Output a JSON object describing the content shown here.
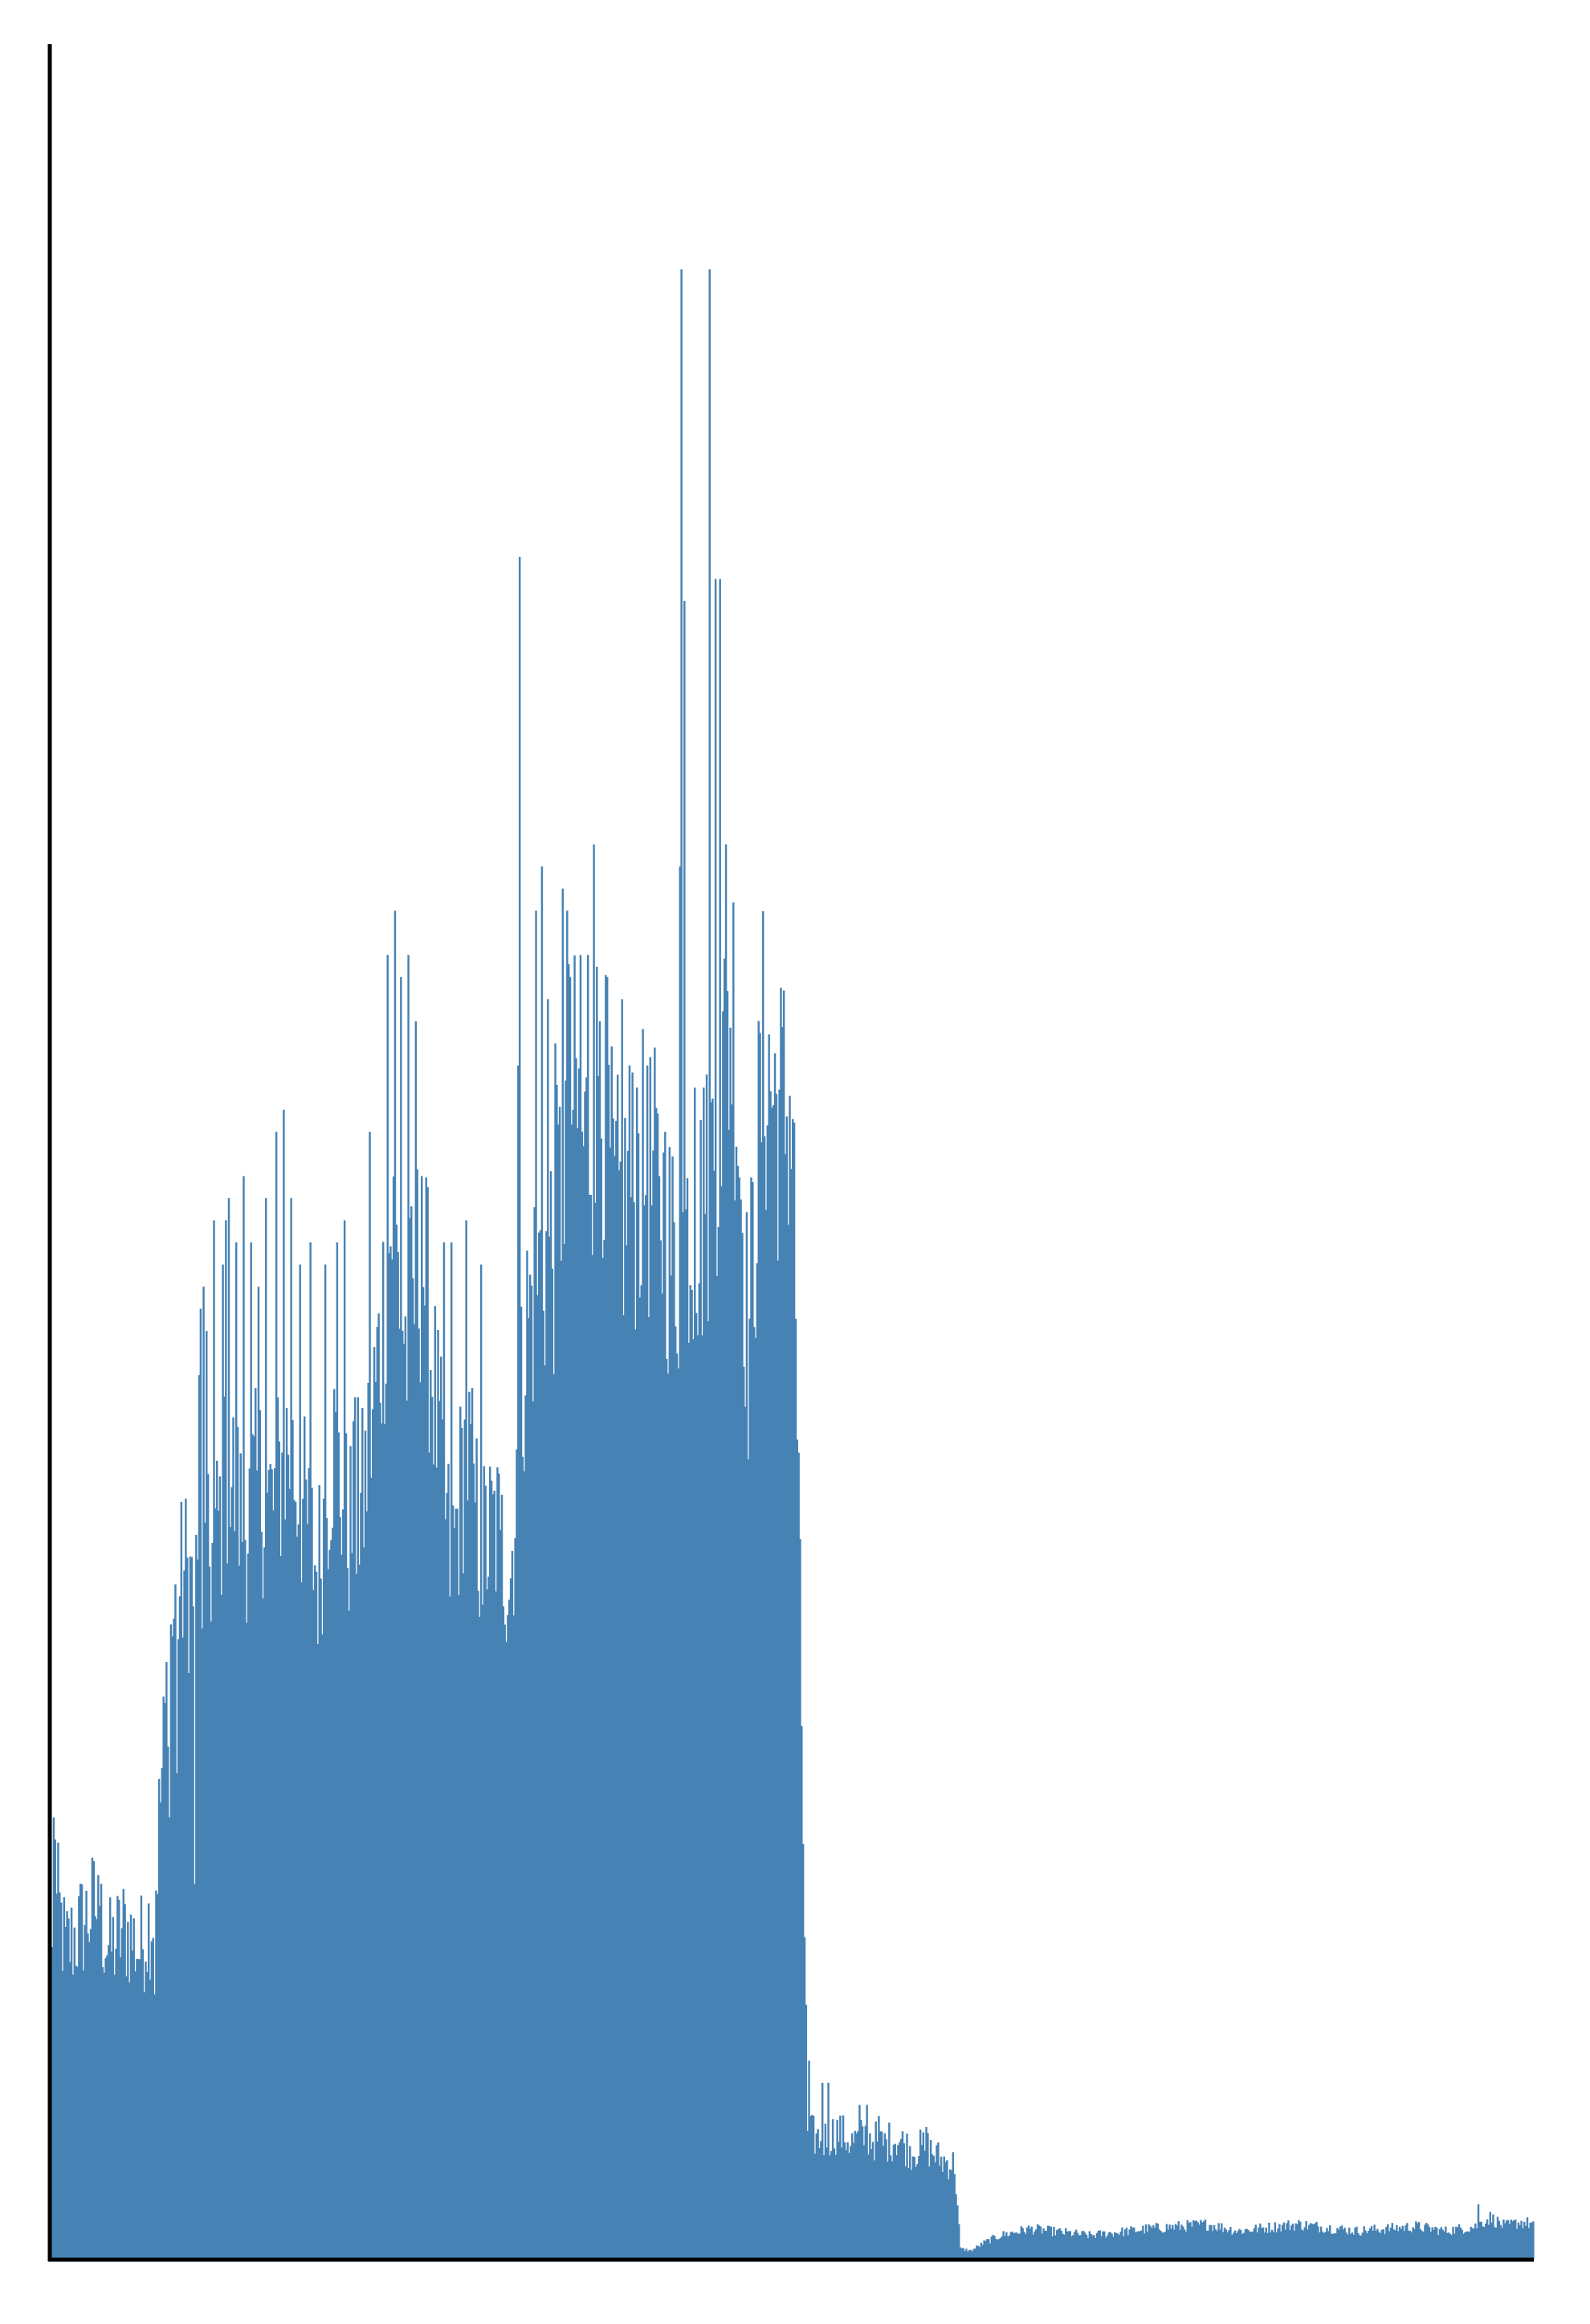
{
  "chart_data": {
    "type": "bar",
    "title": "",
    "xlabel": "",
    "ylabel": "",
    "x_ticks_visible": false,
    "y_ticks_visible": false,
    "grid": false,
    "legend": "none",
    "color": "#4682b4",
    "axis_color": "#000000",
    "ylim": [
      0,
      100
    ],
    "n_bars": 1000,
    "series": [
      {
        "profile": [
          [
            0,
            15
          ],
          [
            5,
            16
          ],
          [
            10,
            14
          ],
          [
            20,
            15
          ],
          [
            30,
            16
          ],
          [
            40,
            14
          ],
          [
            50,
            15
          ],
          [
            60,
            14
          ],
          [
            70,
            16
          ],
          [
            80,
            28
          ],
          [
            90,
            31
          ],
          [
            100,
            30
          ],
          [
            110,
            32
          ],
          [
            120,
            36
          ],
          [
            130,
            33
          ],
          [
            140,
            35
          ],
          [
            150,
            34
          ],
          [
            160,
            37
          ],
          [
            170,
            34
          ],
          [
            180,
            31
          ],
          [
            190,
            37
          ],
          [
            200,
            33
          ],
          [
            210,
            34
          ],
          [
            220,
            40
          ],
          [
            230,
            47
          ],
          [
            240,
            41
          ],
          [
            250,
            46
          ],
          [
            260,
            38
          ],
          [
            270,
            31
          ],
          [
            280,
            37
          ],
          [
            290,
            32
          ],
          [
            300,
            33
          ],
          [
            310,
            31
          ],
          [
            320,
            42
          ],
          [
            330,
            45
          ],
          [
            340,
            46
          ],
          [
            350,
            53
          ],
          [
            360,
            50
          ],
          [
            370,
            54
          ],
          [
            380,
            47
          ],
          [
            390,
            48
          ],
          [
            400,
            49
          ],
          [
            410,
            48
          ],
          [
            420,
            45
          ],
          [
            430,
            47
          ],
          [
            440,
            47
          ],
          [
            450,
            52
          ],
          [
            460,
            57
          ],
          [
            470,
            41
          ],
          [
            480,
            54
          ],
          [
            490,
            52
          ],
          [
            500,
            52
          ],
          [
            510,
            5.7
          ],
          [
            520,
            5.4
          ],
          [
            530,
            5.8
          ],
          [
            540,
            5.3
          ],
          [
            550,
            5.6
          ],
          [
            560,
            5.2
          ],
          [
            570,
            5.5
          ],
          [
            580,
            4.9
          ],
          [
            590,
            5.1
          ],
          [
            600,
            4.5
          ],
          [
            609,
            4.3
          ],
          [
            613,
            0.5
          ],
          [
            620,
            0.4
          ],
          [
            630,
            0.8
          ],
          [
            640,
            1.1
          ],
          [
            660,
            1.4
          ],
          [
            700,
            1.1
          ],
          [
            740,
            1.4
          ],
          [
            780,
            1.6
          ],
          [
            800,
            1.3
          ],
          [
            840,
            1.6
          ],
          [
            880,
            1.3
          ],
          [
            920,
            1.5
          ],
          [
            940,
            1.3
          ],
          [
            960,
            1.5
          ],
          [
            970,
            1.9
          ],
          [
            980,
            1.5
          ],
          [
            990,
            1.7
          ],
          [
            1000,
            1.6
          ]
        ],
        "spikes": [
          [
            2,
            20
          ],
          [
            3,
            19
          ],
          [
            33,
            16
          ],
          [
            34,
            17
          ],
          [
            70,
            12
          ],
          [
            80,
            20
          ],
          [
            85,
            22
          ],
          [
            97,
            17
          ],
          [
            100,
            40
          ],
          [
            101,
            43
          ],
          [
            103,
            44
          ],
          [
            105,
            42
          ],
          [
            110,
            47
          ],
          [
            116,
            45
          ],
          [
            118,
            47
          ],
          [
            120,
            48
          ],
          [
            125,
            46
          ],
          [
            130,
            49
          ],
          [
            135,
            46
          ],
          [
            140,
            44
          ],
          [
            145,
            48
          ],
          [
            152,
            51
          ],
          [
            157,
            52
          ],
          [
            162,
            48
          ],
          [
            168,
            45
          ],
          [
            175,
            46
          ],
          [
            185,
            45
          ],
          [
            193,
            46
          ],
          [
            198,
            47
          ],
          [
            205,
            39
          ],
          [
            207,
            39
          ],
          [
            215,
            51
          ],
          [
            227,
            59
          ],
          [
            232,
            61
          ],
          [
            236,
            58
          ],
          [
            241,
            59
          ],
          [
            246,
            56
          ],
          [
            250,
            49
          ],
          [
            265,
            46
          ],
          [
            270,
            46
          ],
          [
            280,
            47
          ],
          [
            285,
            36
          ],
          [
            290,
            45
          ],
          [
            303,
            33
          ],
          [
            315,
            54
          ],
          [
            316,
            77
          ],
          [
            327,
            61
          ],
          [
            331,
            63
          ],
          [
            335,
            57
          ],
          [
            340,
            55
          ],
          [
            345,
            62
          ],
          [
            348,
            61
          ],
          [
            350,
            58
          ],
          [
            357,
            59
          ],
          [
            362,
            59
          ],
          [
            366,
            64
          ],
          [
            370,
            56
          ],
          [
            375,
            58
          ],
          [
            385,
            57
          ],
          [
            390,
            54
          ],
          [
            395,
            53
          ],
          [
            402,
            54
          ],
          [
            410,
            49
          ],
          [
            414,
            51
          ],
          [
            424,
            63
          ],
          [
            425,
            90
          ],
          [
            427,
            75
          ],
          [
            434,
            53
          ],
          [
            440,
            53
          ],
          [
            444,
            90
          ],
          [
            448,
            76
          ],
          [
            451,
            76
          ],
          [
            455,
            64
          ],
          [
            511,
            9
          ],
          [
            520,
            8
          ],
          [
            524,
            8
          ],
          [
            545,
            7
          ],
          [
            550,
            7
          ],
          [
            558,
            6.5
          ],
          [
            590,
            6
          ],
          [
            962,
            2.5
          ]
        ]
      }
    ]
  }
}
